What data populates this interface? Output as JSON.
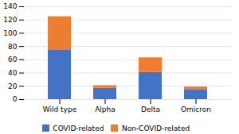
{
  "chart_data": {
    "type": "bar",
    "stacked": true,
    "categories": [
      "Wild type",
      "Alpha",
      "Delta",
      "Omicron"
    ],
    "series": [
      {
        "name": "COVID-related",
        "color": "#4472C4",
        "values": [
          75,
          17,
          41,
          15
        ]
      },
      {
        "name": "Non-COVID-related",
        "color": "#ED7D31",
        "values": [
          50,
          4,
          22,
          4
        ]
      }
    ],
    "ylim": [
      0,
      140
    ],
    "yticks": [
      0,
      20,
      40,
      60,
      80,
      100,
      120,
      140
    ],
    "grid": true,
    "legend": "bottom"
  }
}
